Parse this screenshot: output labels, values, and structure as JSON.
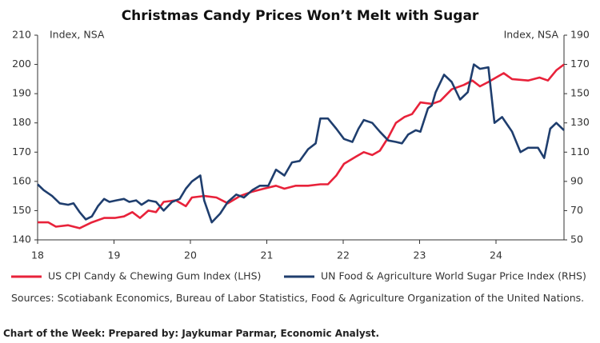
{
  "chart_data": {
    "type": "line",
    "title": "Christmas Candy Prices Won’t Melt with Sugar",
    "y_label": "Index, NSA",
    "y2_label": "Index, NSA",
    "xlim": [
      2018,
      2024.89
    ],
    "xticks": [
      {
        "value": 2018,
        "label": "18"
      },
      {
        "value": 2019,
        "label": "19"
      },
      {
        "value": 2020,
        "label": "20"
      },
      {
        "value": 2021,
        "label": "21"
      },
      {
        "value": 2022,
        "label": "22"
      },
      {
        "value": 2023,
        "label": "23"
      },
      {
        "value": 2024,
        "label": "24"
      }
    ],
    "ylim": [
      140,
      210
    ],
    "yticks": [
      140,
      150,
      160,
      170,
      180,
      190,
      200,
      210
    ],
    "y2lim": [
      50,
      190
    ],
    "y2ticks": [
      50,
      70,
      90,
      110,
      130,
      150,
      170,
      190
    ],
    "series": [
      {
        "name": "US CPI Candy & Chewing Gum Index (LHS)",
        "color": "#e8223a",
        "x": [
          2018.0,
          2018.14,
          2018.24,
          2018.4,
          2018.55,
          2018.71,
          2018.87,
          2019.01,
          2019.13,
          2019.24,
          2019.34,
          2019.45,
          2019.55,
          2019.65,
          2019.81,
          2019.94,
          2020.02,
          2020.18,
          2020.34,
          2020.49,
          2020.65,
          2020.81,
          2020.96,
          2021.12,
          2021.23,
          2021.38,
          2021.54,
          2021.7,
          2021.8,
          2021.91,
          2022.01,
          2022.17,
          2022.27,
          2022.38,
          2022.48,
          2022.59,
          2022.69,
          2022.8,
          2022.9,
          2023.01,
          2023.16,
          2023.27,
          2023.42,
          2023.58,
          2023.69,
          2023.79,
          2023.9,
          2024.0,
          2024.1,
          2024.21,
          2024.42,
          2024.57,
          2024.68,
          2024.79,
          2024.89
        ],
        "values": [
          146,
          146,
          144.5,
          145,
          144,
          146,
          147.5,
          147.5,
          148,
          149.5,
          147.5,
          150,
          149.5,
          153,
          153.5,
          151.5,
          154.5,
          155,
          154.5,
          152.5,
          155,
          156.5,
          157.5,
          158.5,
          157.5,
          158.5,
          158.5,
          159,
          159,
          162,
          166,
          168.5,
          170,
          169,
          170.5,
          175,
          180,
          182,
          183,
          187,
          186.5,
          187.5,
          191.5,
          193,
          194.5,
          192.5,
          194,
          195.5,
          197,
          195,
          194.5,
          195.5,
          194.5,
          198,
          200
        ]
      },
      {
        "name": "UN Food & Agriculture World Sugar Price Index (RHS)",
        "color": "#1f3e6e",
        "axis": "y2",
        "x": [
          2018.0,
          2018.08,
          2018.19,
          2018.29,
          2018.4,
          2018.47,
          2018.55,
          2018.63,
          2018.71,
          2018.79,
          2018.87,
          2018.94,
          2019.03,
          2019.13,
          2019.2,
          2019.29,
          2019.36,
          2019.45,
          2019.55,
          2019.65,
          2019.76,
          2019.86,
          2019.94,
          2020.02,
          2020.13,
          2020.18,
          2020.28,
          2020.39,
          2020.49,
          2020.6,
          2020.7,
          2020.81,
          2020.91,
          2021.02,
          2021.12,
          2021.23,
          2021.33,
          2021.43,
          2021.54,
          2021.64,
          2021.7,
          2021.8,
          2021.91,
          2022.01,
          2022.12,
          2022.2,
          2022.27,
          2022.38,
          2022.48,
          2022.59,
          2022.69,
          2022.77,
          2022.85,
          2022.95,
          2023.01,
          2023.11,
          2023.16,
          2023.21,
          2023.32,
          2023.42,
          2023.53,
          2023.63,
          2023.71,
          2023.79,
          2023.9,
          2023.98,
          2024.08,
          2024.21,
          2024.32,
          2024.42,
          2024.55,
          2024.63,
          2024.71,
          2024.79,
          2024.89
        ],
        "values": [
          88,
          84,
          80,
          75,
          74,
          75,
          69,
          64,
          66,
          73,
          78,
          76,
          77,
          78,
          76,
          77,
          74,
          77,
          76,
          70,
          76,
          78,
          85,
          90,
          94,
          77,
          62,
          68,
          76,
          81,
          79,
          84,
          87,
          87,
          98,
          94,
          103,
          104,
          112,
          116,
          133,
          133,
          126,
          119,
          117,
          126,
          132,
          130,
          124,
          118,
          117,
          116,
          122,
          125,
          124,
          140,
          142,
          151,
          163,
          158,
          146,
          151,
          170,
          167,
          168,
          130,
          134,
          124,
          110,
          113,
          113,
          106,
          126,
          130,
          125
        ]
      }
    ],
    "source": "Sources: Scotiabank Economics, Bureau of Labor Statistics, Food & Agriculture Organization of the United Nations.",
    "footer": "Chart of the Week: Prepared by: Jaykumar Parmar, Economic Analyst."
  }
}
